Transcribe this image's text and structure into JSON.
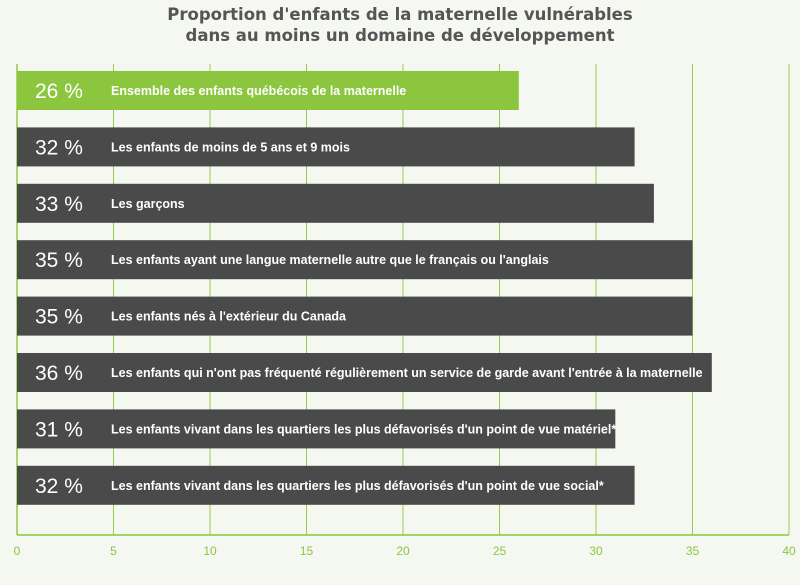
{
  "colors": {
    "highlight_bar": "#8cc63f",
    "bar": "#4a4a4a",
    "grid": "#8cc63f",
    "tick_text": "#8cc63f",
    "title_text": "#555555",
    "background": "#f5f7f1"
  },
  "chart_data": {
    "type": "bar",
    "orientation": "horizontal",
    "title": [
      "Proportion d'enfants de la maternelle vulnérables",
      "dans au moins un domaine de développement"
    ],
    "xlabel": "",
    "ylabel": "",
    "xlim": [
      0,
      40
    ],
    "x_ticks": [
      0,
      5,
      10,
      15,
      20,
      25,
      30,
      35,
      40
    ],
    "grid": "vertical",
    "legend": "none",
    "highlighted_index": 0,
    "categories": [
      "Ensemble des enfants québécois de la maternelle",
      "Les enfants de moins de 5 ans et 9 mois",
      "Les garçons",
      "Les enfants ayant une langue maternelle autre que le français ou l'anglais",
      "Les enfants nés à l'extérieur du Canada",
      "Les enfants qui n'ont pas fréquenté régulièrement un service de garde avant l'entrée à la maternelle",
      "Les enfants vivant dans les quartiers les plus défavorisés d'un point de vue matériel*",
      "Les enfants vivant dans les quartiers les plus défavorisés d'un point de vue social*"
    ],
    "values": [
      26,
      32,
      33,
      35,
      35,
      36,
      31,
      32
    ],
    "value_labels": [
      "26 %",
      "32 %",
      "33 %",
      "35 %",
      "35 %",
      "36 %",
      "31 %",
      "32 %"
    ]
  }
}
